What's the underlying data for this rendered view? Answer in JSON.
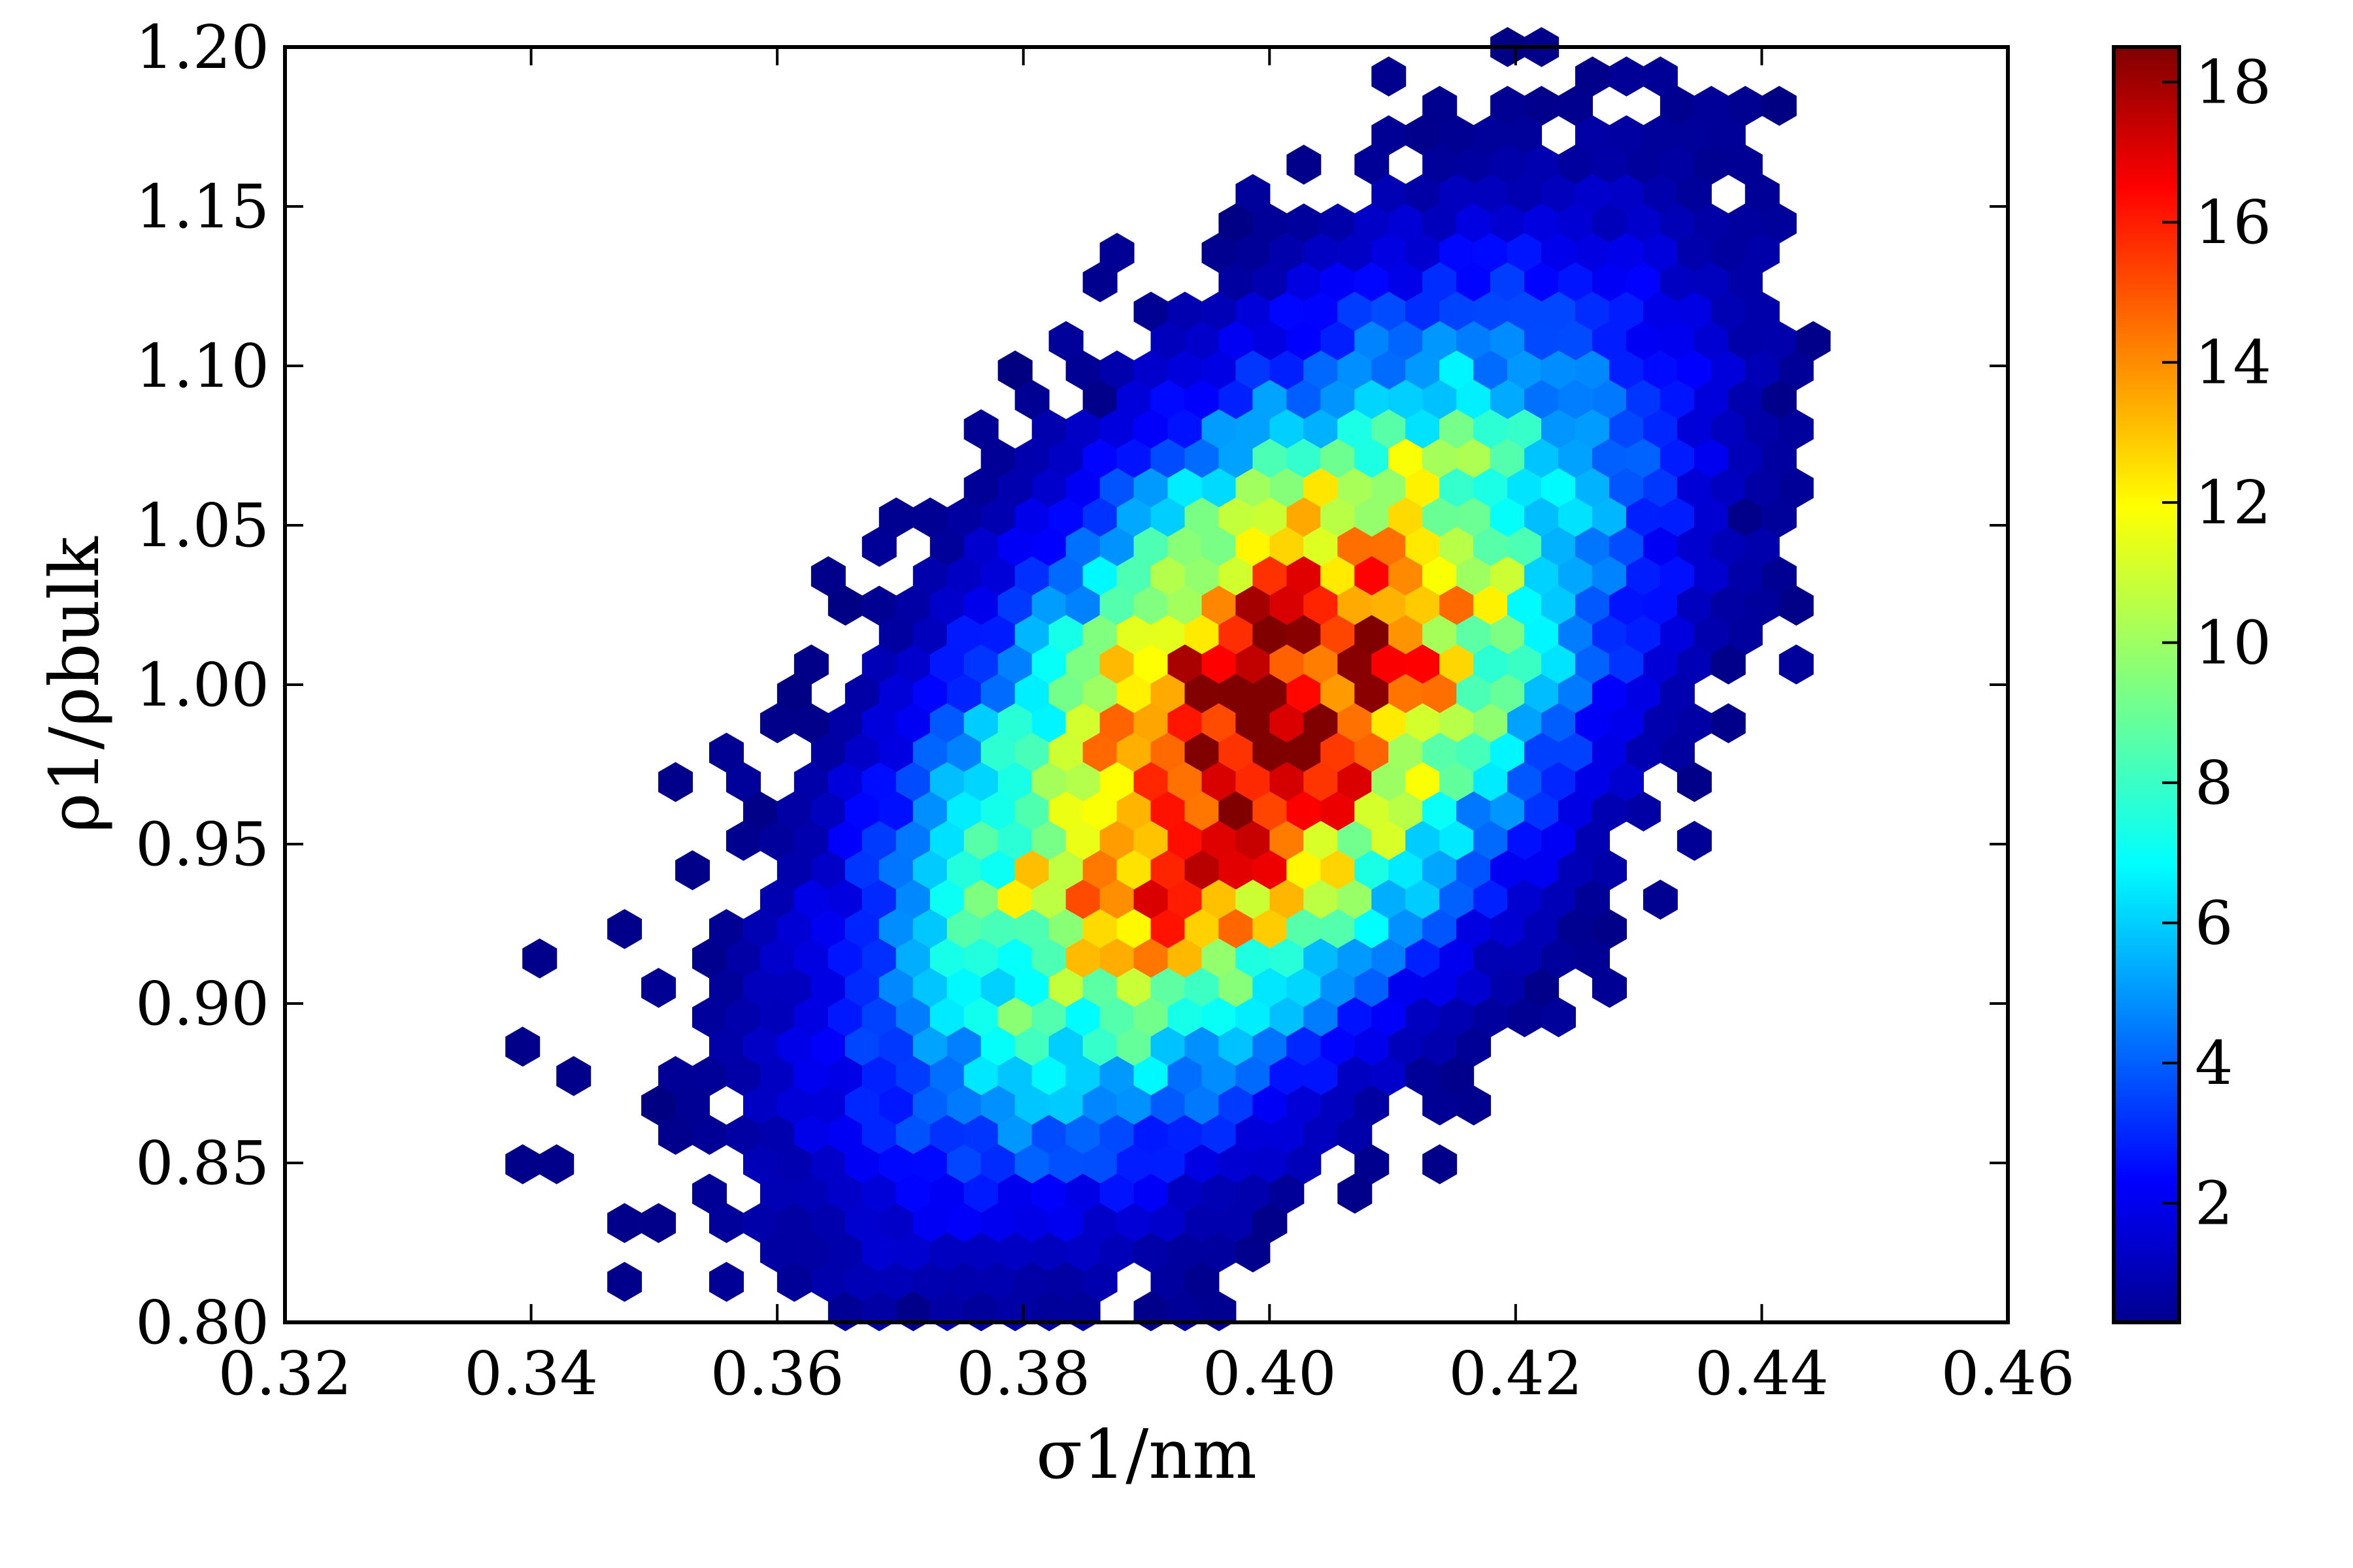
{
  "chart_data": {
    "type": "heatmap",
    "subtype": "hexbin",
    "xlabel": "σ1/nm",
    "ylabel": "ρ1/ρbulk",
    "xlim": [
      0.32,
      0.46
    ],
    "ylim": [
      0.8,
      1.2
    ],
    "x_ticks": [
      "0.32",
      "0.34",
      "0.36",
      "0.38",
      "0.40",
      "0.42",
      "0.44",
      "0.46"
    ],
    "y_ticks": [
      "0.80",
      "0.85",
      "0.90",
      "0.95",
      "1.00",
      "1.05",
      "1.10",
      "1.15",
      "1.20"
    ],
    "colorbar": {
      "colormap": "jet",
      "range": [
        0.3,
        18.5
      ],
      "ticks": [
        "2",
        "4",
        "6",
        "8",
        "10",
        "12",
        "14",
        "16",
        "18"
      ]
    },
    "distribution": {
      "center": [
        0.399,
        0.985
      ],
      "sx": 0.0175,
      "sy": 0.075,
      "rho": 0.58,
      "peak_count": 18.5,
      "extent_x": [
        0.338,
        0.443
      ],
      "extent_y": [
        0.8,
        1.2
      ]
    },
    "peak_bins": [
      {
        "x": 0.4035,
        "y": 0.99,
        "v": 18.5
      },
      {
        "x": 0.401,
        "y": 0.97,
        "v": 17.0
      },
      {
        "x": 0.397,
        "y": 0.947,
        "v": 16.8
      },
      {
        "x": 0.4085,
        "y": 1.005,
        "v": 16.3
      },
      {
        "x": 0.3945,
        "y": 0.955,
        "v": 16.0
      },
      {
        "x": 0.3975,
        "y": 0.97,
        "v": 15.5
      },
      {
        "x": 0.4,
        "y": 0.96,
        "v": 15.0
      },
      {
        "x": 0.4045,
        "y": 0.978,
        "v": 15.2
      },
      {
        "x": 0.401,
        "y": 1.005,
        "v": 14.5
      },
      {
        "x": 0.404,
        "y": 1.01,
        "v": 14.0
      },
      {
        "x": 0.393,
        "y": 0.97,
        "v": 14.2
      },
      {
        "x": 0.394,
        "y": 0.92,
        "v": 12.5
      },
      {
        "x": 0.397,
        "y": 0.93,
        "v": 12.8
      },
      {
        "x": 0.393,
        "y": 1.0,
        "v": 13.2
      }
    ],
    "outlier_bins": [
      {
        "x": 0.3395,
        "y": 0.912
      },
      {
        "x": 0.338,
        "y": 0.887
      },
      {
        "x": 0.3425,
        "y": 0.878
      },
      {
        "x": 0.3395,
        "y": 0.845
      },
      {
        "x": 0.341,
        "y": 0.853
      },
      {
        "x": 0.3465,
        "y": 0.835
      },
      {
        "x": 0.3475,
        "y": 0.809
      },
      {
        "x": 0.3505,
        "y": 0.829
      },
      {
        "x": 0.3645,
        "y": 1.033
      },
      {
        "x": 0.364,
        "y": 0.99
      },
      {
        "x": 0.3855,
        "y": 1.085
      },
      {
        "x": 0.403,
        "y": 1.163
      },
      {
        "x": 0.422,
        "y": 1.198
      },
      {
        "x": 0.426,
        "y": 1.19
      },
      {
        "x": 0.443,
        "y": 1.11
      },
      {
        "x": 0.4415,
        "y": 1.085
      },
      {
        "x": 0.4385,
        "y": 1.05
      },
      {
        "x": 0.437,
        "y": 1.005
      },
      {
        "x": 0.437,
        "y": 0.99
      },
      {
        "x": 0.421,
        "y": 0.905
      },
      {
        "x": 0.347,
        "y": 0.922
      },
      {
        "x": 0.353,
        "y": 0.973
      },
      {
        "x": 0.389,
        "y": 0.802
      },
      {
        "x": 0.37,
        "y": 0.8
      },
      {
        "x": 0.401,
        "y": 0.83
      }
    ]
  }
}
